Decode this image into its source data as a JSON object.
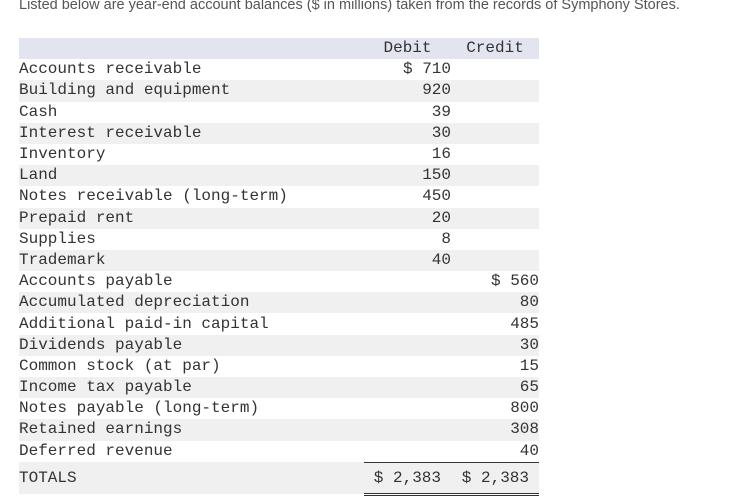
{
  "intro": "Listed below are year-end account balances ($ in millions) taken from the records of Symphony Stores.",
  "headers": {
    "account": "",
    "debit": "Debit",
    "credit": "Credit"
  },
  "rows": [
    {
      "account": "Accounts receivable",
      "debit": "$ 710",
      "credit": ""
    },
    {
      "account": "Building and equipment",
      "debit": "920",
      "credit": ""
    },
    {
      "account": "Cash",
      "debit": "39",
      "credit": ""
    },
    {
      "account": "Interest receivable",
      "debit": "30",
      "credit": ""
    },
    {
      "account": "Inventory",
      "debit": "16",
      "credit": ""
    },
    {
      "account": "Land",
      "debit": "150",
      "credit": ""
    },
    {
      "account": "Notes receivable (long-term)",
      "debit": "450",
      "credit": ""
    },
    {
      "account": "Prepaid rent",
      "debit": "20",
      "credit": ""
    },
    {
      "account": "Supplies",
      "debit": "8",
      "credit": ""
    },
    {
      "account": "Trademark",
      "debit": "40",
      "credit": ""
    },
    {
      "account": "Accounts payable",
      "debit": "",
      "credit": "$ 560"
    },
    {
      "account": "Accumulated depreciation",
      "debit": "",
      "credit": "80"
    },
    {
      "account": "Additional paid-in capital",
      "debit": "",
      "credit": "485"
    },
    {
      "account": "Dividends payable",
      "debit": "",
      "credit": "30"
    },
    {
      "account": "Common stock (at par)",
      "debit": "",
      "credit": "15"
    },
    {
      "account": "Income tax payable",
      "debit": "",
      "credit": "65"
    },
    {
      "account": "Notes payable (long-term)",
      "debit": "",
      "credit": "800"
    },
    {
      "account": "Retained earnings",
      "debit": "",
      "credit": "308"
    },
    {
      "account": "Deferred revenue",
      "debit": "",
      "credit": "40"
    }
  ],
  "totals": {
    "label": "TOTALS",
    "debit": "$ 2,383",
    "credit": "$ 2,383"
  }
}
